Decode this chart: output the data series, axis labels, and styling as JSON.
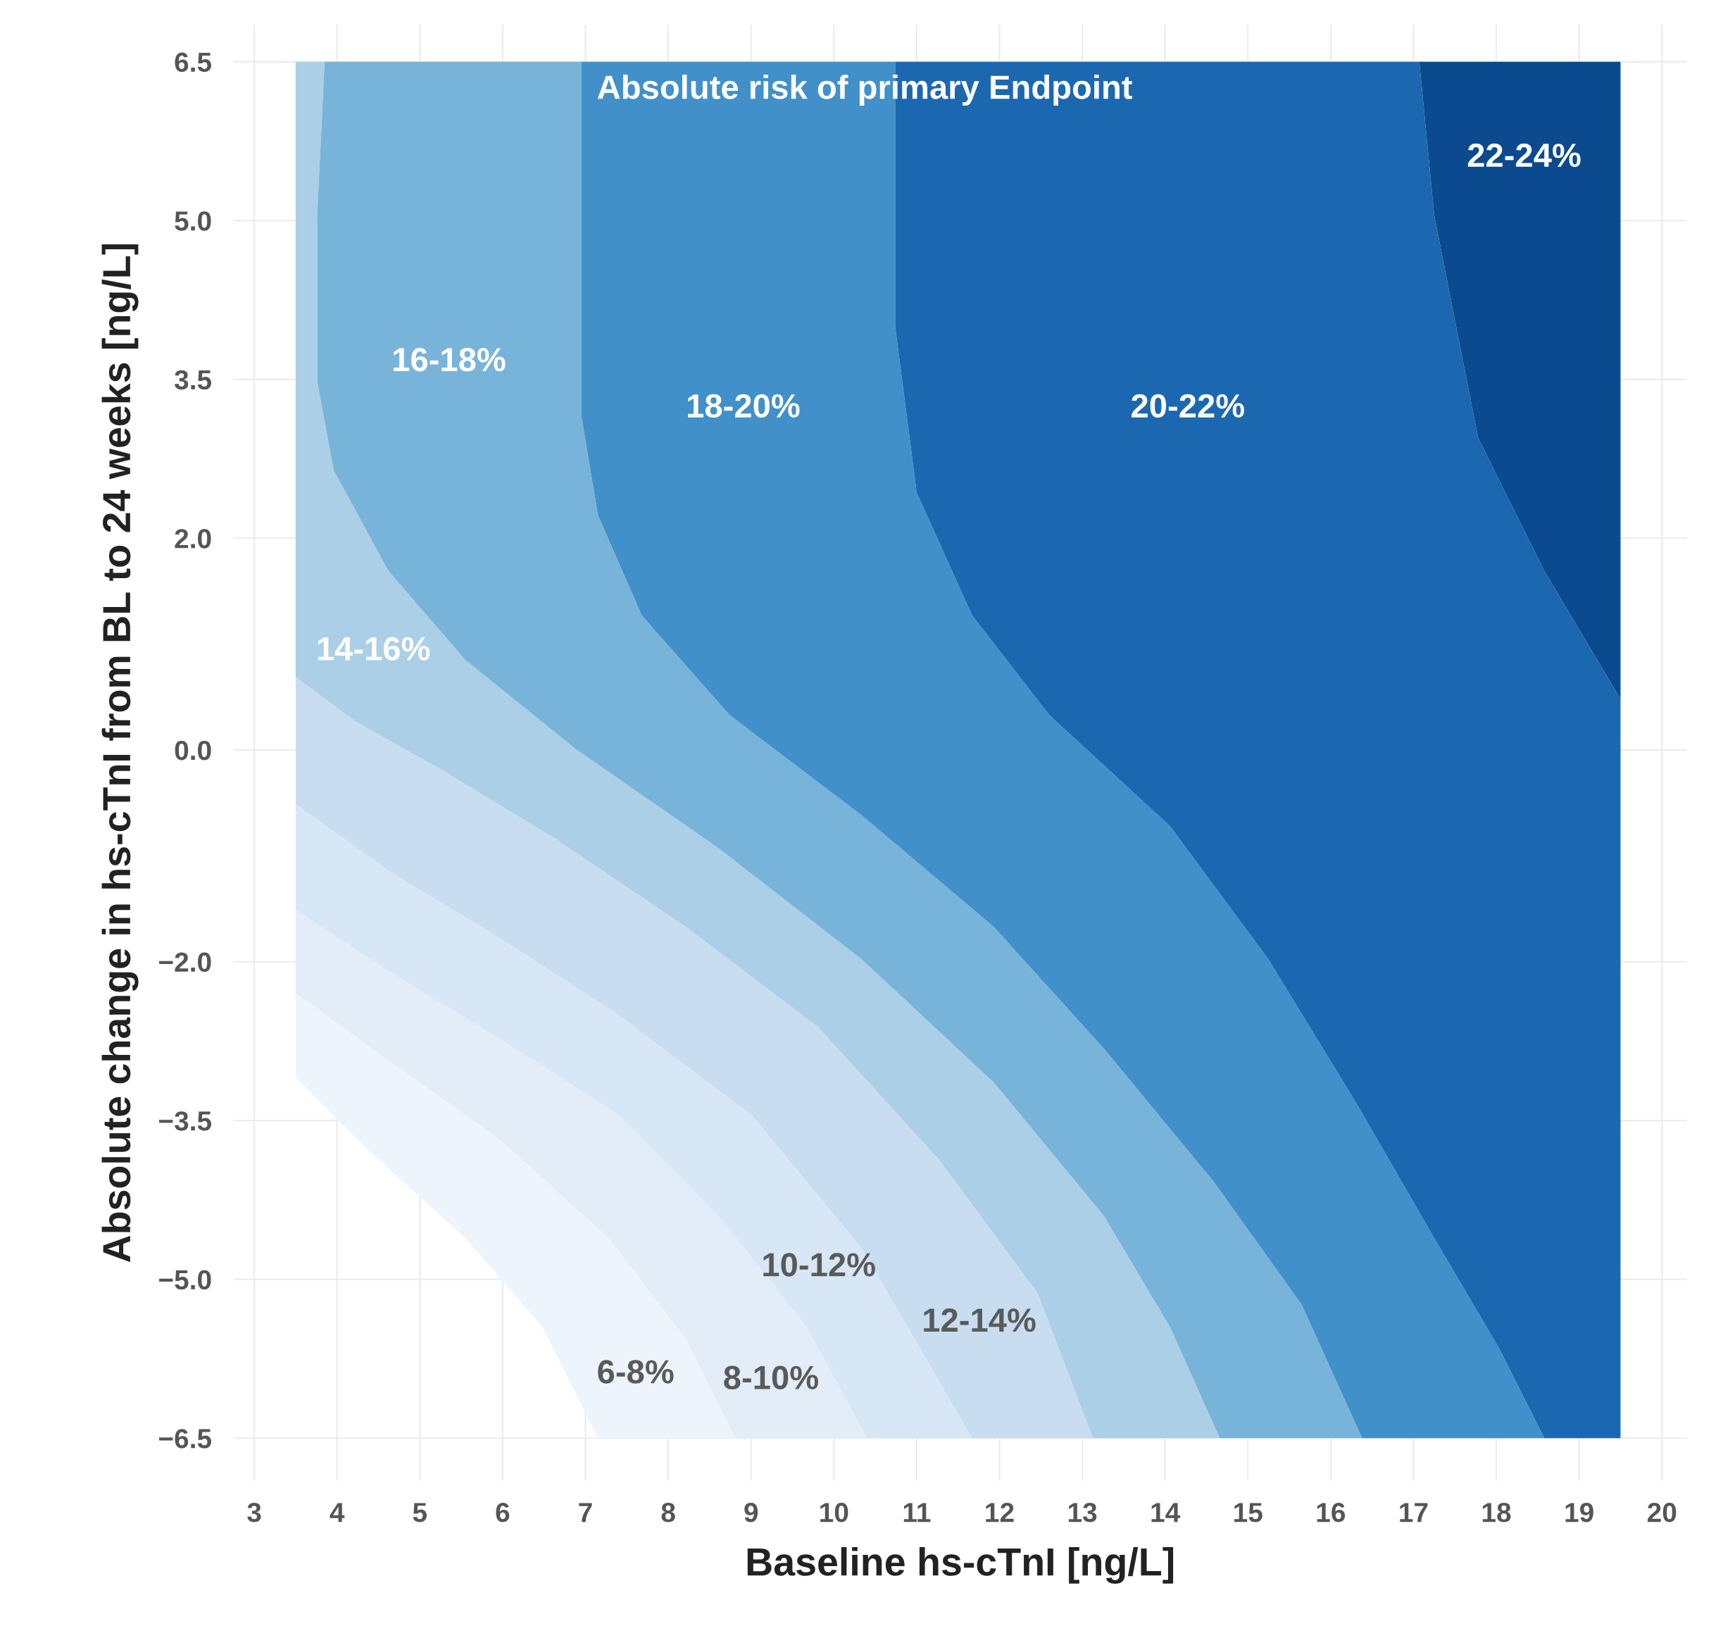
{
  "chart_data": {
    "type": "area",
    "title": "Absolute risk of primary Endpoint",
    "xlabel": "Baseline hs-cTnI [ng/L]",
    "ylabel": "Absolute change in hs-cTnI from BL to 24 weeks [ng/L]",
    "xlim": [
      2.75,
      20.3
    ],
    "ylim": [
      -6.9,
      6.85
    ],
    "xticks": [
      3,
      4,
      5,
      6,
      7,
      8,
      9,
      10,
      11,
      12,
      13,
      14,
      15,
      16,
      17,
      18,
      19,
      20
    ],
    "yticks": [
      {
        "value": -6.5,
        "label": "−6.5"
      },
      {
        "value": -5.0,
        "label": "−5.0"
      },
      {
        "value": -3.5,
        "label": "−3.5"
      },
      {
        "value": -2.0,
        "label": "−2.0"
      },
      {
        "value": 0.0,
        "label": "0.0"
      },
      {
        "value": 2.0,
        "label": "2.0"
      },
      {
        "value": 3.5,
        "label": "3.5"
      },
      {
        "value": 5.0,
        "label": "5.0"
      },
      {
        "value": 6.5,
        "label": "6.5"
      }
    ],
    "grid": true,
    "series": [
      {
        "name": "6-8%",
        "color": "#eef4fb",
        "x": [
          3.5,
          4.36,
          5.55,
          6.48,
          7.15,
          8.81,
          8.21,
          7.28,
          5.95,
          4.62,
          3.5
        ],
        "values": [
          -3.09,
          -3.77,
          -4.61,
          -5.45,
          -6.5,
          -6.5,
          -5.56,
          -4.61,
          -3.67,
          -2.93,
          -2.3
        ]
      },
      {
        "name": "8-10%",
        "color": "#e3edf8",
        "x": [
          3.5,
          4.62,
          5.95,
          7.28,
          8.21,
          8.81,
          10.4,
          9.67,
          8.61,
          7.41,
          5.95,
          4.62,
          3.5
        ],
        "values": [
          -2.3,
          -2.93,
          -3.67,
          -4.61,
          -5.56,
          -6.5,
          -6.5,
          -5.45,
          -4.4,
          -3.45,
          -2.72,
          -2.09,
          -1.51
        ]
      },
      {
        "name": "10-12%",
        "color": "#d8e7f5",
        "x": [
          3.5,
          4.62,
          5.95,
          7.41,
          8.61,
          9.67,
          10.4,
          11.67,
          10.34,
          9.01,
          7.41,
          5.95,
          4.62,
          3.5
        ],
        "values": [
          -1.51,
          -2.09,
          -2.72,
          -3.45,
          -4.4,
          -5.45,
          -6.5,
          -6.5,
          -4.71,
          -3.45,
          -2.51,
          -1.77,
          -1.14,
          -0.51
        ]
      },
      {
        "name": "12-14%",
        "color": "#c8ddf0",
        "x": [
          3.5,
          4.62,
          5.95,
          7.41,
          9.01,
          10.34,
          11.67,
          13.13,
          12.46,
          11.27,
          9.8,
          8.21,
          6.62,
          5.29,
          4.22,
          3.5
        ],
        "values": [
          -0.51,
          -1.14,
          -1.77,
          -2.51,
          -3.45,
          -4.71,
          -6.5,
          -6.5,
          -5.13,
          -3.87,
          -2.61,
          -1.67,
          -0.83,
          -0.2,
          0.27,
          0.69
        ]
      },
      {
        "name": "14-16%",
        "color": "#abcfe6",
        "x": [
          3.5,
          4.22,
          5.29,
          6.62,
          8.21,
          9.8,
          11.27,
          12.46,
          13.13,
          14.66,
          14.06,
          13.26,
          11.93,
          10.34,
          8.61,
          6.88,
          5.55,
          4.62,
          3.96,
          3.76,
          3.76,
          3.85,
          3.5
        ],
        "values": [
          0.69,
          0.27,
          -0.2,
          -0.83,
          -1.67,
          -2.61,
          -3.87,
          -5.13,
          -6.5,
          -6.5,
          -5.45,
          -4.4,
          -3.14,
          -1.98,
          -0.93,
          0.01,
          0.85,
          1.69,
          2.64,
          3.48,
          5.05,
          6.5,
          6.5
        ]
      },
      {
        "name": "16-18%",
        "color": "#78b4da",
        "x": [
          3.85,
          3.76,
          3.76,
          3.96,
          4.62,
          5.55,
          6.88,
          8.61,
          10.34,
          11.93,
          13.26,
          14.06,
          14.66,
          16.38,
          15.65,
          14.59,
          13.26,
          11.93,
          10.34,
          8.74,
          7.68,
          7.15,
          6.95,
          6.95
        ],
        "values": [
          6.5,
          5.05,
          3.48,
          2.64,
          1.69,
          0.85,
          0.01,
          -0.93,
          -1.98,
          -3.14,
          -4.4,
          -5.45,
          -6.5,
          -6.5,
          -5.24,
          -4.08,
          -2.82,
          -1.67,
          -0.62,
          0.33,
          1.27,
          2.22,
          3.16,
          6.5
        ]
      },
      {
        "name": "18-20%",
        "color": "#4190ca",
        "x": [
          6.95,
          6.95,
          7.15,
          7.68,
          8.74,
          10.34,
          11.93,
          13.26,
          14.59,
          15.65,
          16.38,
          18.58,
          18.04,
          17.25,
          16.32,
          15.25,
          14.06,
          12.6,
          11.67,
          11.0,
          10.74,
          10.74
        ],
        "values": [
          6.5,
          3.16,
          2.22,
          1.27,
          0.33,
          -0.62,
          -1.67,
          -2.82,
          -4.08,
          -5.24,
          -6.5,
          -6.5,
          -5.66,
          -4.61,
          -3.35,
          -1.98,
          -0.72,
          0.33,
          1.27,
          2.43,
          4.0,
          6.5
        ]
      },
      {
        "name": "20-22%",
        "color": "#1c68b0",
        "x": [
          10.74,
          10.74,
          11.0,
          11.67,
          12.6,
          14.06,
          15.25,
          16.32,
          17.25,
          18.04,
          18.58,
          19.5,
          19.5,
          18.58,
          17.78,
          17.25,
          17.07
        ],
        "values": [
          6.5,
          4.0,
          2.43,
          1.27,
          0.33,
          -0.72,
          -1.98,
          -3.35,
          -4.61,
          -5.66,
          -6.5,
          -6.5,
          0.48,
          1.69,
          2.95,
          5.05,
          6.5
        ]
      },
      {
        "name": "22-24%",
        "color": "#0b4a8f",
        "x": [
          17.07,
          17.25,
          17.78,
          18.58,
          19.5,
          19.5
        ],
        "values": [
          6.5,
          5.05,
          2.95,
          1.69,
          0.48,
          6.5
        ]
      }
    ]
  }
}
